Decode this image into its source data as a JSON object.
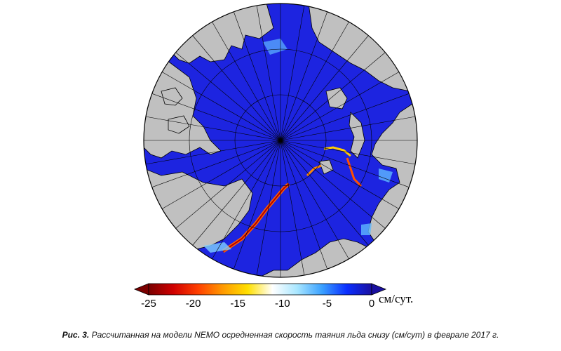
{
  "map": {
    "projection": "polar-stereographic",
    "colors": {
      "land": "#c0c0c0",
      "ocean_base": "#1d24e0",
      "coast": "#000000",
      "grid": "#000000"
    }
  },
  "colorbar": {
    "ticks": [
      "-25",
      "-20",
      "-15",
      "-10",
      "-5",
      "0"
    ],
    "unit": "см/сут.",
    "range": [
      -25,
      0
    ],
    "colors": [
      "#7a0000",
      "#d00000",
      "#ff4000",
      "#ff9a00",
      "#ffe000",
      "#ffffff",
      "#a8e6ff",
      "#3aa0ff",
      "#0a2eff",
      "#1a10a0"
    ]
  },
  "caption": {
    "label": "Рис. 3.",
    "text": "Рассчитанная на модели NEMO осредненная скорость таяния льда снизу (см/сут) в феврале 2017 г."
  }
}
